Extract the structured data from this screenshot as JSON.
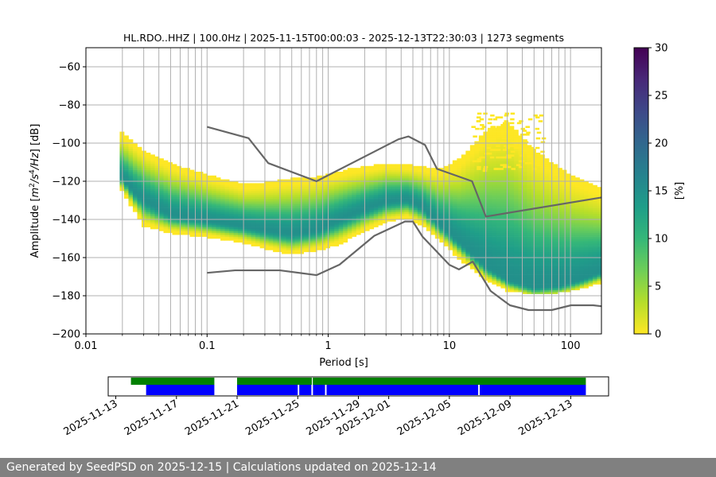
{
  "chart_data": [
    {
      "type": "heatmap",
      "title": "HL.RDO..HHZ | 100.0Hz | 2025-11-15T00:00:03 - 2025-12-13T22:30:03 | 1273 segments",
      "xlabel": "Period [s]",
      "ylabel_pre": "Amplitude [",
      "ylabel_m": "m",
      "ylabel_2": "2",
      "ylabel_s": "/s",
      "ylabel_4": "4",
      "ylabel_hz": "/Hz",
      "ylabel_post": "] [dB]",
      "x_scale": "log",
      "xlim": [
        0.01,
        180
      ],
      "ylim": [
        -200,
        -50
      ],
      "x_ticks": [
        {
          "value": 0.01,
          "label": "0.01"
        },
        {
          "value": 0.1,
          "label": "0.1"
        },
        {
          "value": 1,
          "label": "1"
        },
        {
          "value": 10,
          "label": "10"
        },
        {
          "value": 100,
          "label": "100"
        }
      ],
      "y_ticks": [
        {
          "value": -60,
          "label": "−60"
        },
        {
          "value": -80,
          "label": "−80"
        },
        {
          "value": -100,
          "label": "−100"
        },
        {
          "value": -120,
          "label": "−120"
        },
        {
          "value": -140,
          "label": "−140"
        },
        {
          "value": -160,
          "label": "−160"
        },
        {
          "value": -180,
          "label": "−180"
        },
        {
          "value": -200,
          "label": "−200"
        }
      ],
      "grid": true,
      "colorbar": {
        "label": "[%]",
        "range": [
          0,
          30
        ],
        "ticks": [
          {
            "value": 0,
            "label": "0"
          },
          {
            "value": 5,
            "label": "5"
          },
          {
            "value": 10,
            "label": "10"
          },
          {
            "value": 15,
            "label": "15"
          },
          {
            "value": 20,
            "label": "20"
          },
          {
            "value": 25,
            "label": "25"
          },
          {
            "value": 30,
            "label": "30"
          }
        ],
        "colors": [
          "#fde725",
          "#b5de2b",
          "#6ece58",
          "#35b779",
          "#1f9e89",
          "#26828e",
          "#31688e",
          "#3e4989",
          "#482878",
          "#440154"
        ]
      },
      "density_band": {
        "core": [
          {
            "period": 0.019,
            "db": -117
          },
          {
            "period": 0.025,
            "db": -126
          },
          {
            "period": 0.03,
            "db": -130
          },
          {
            "period": 0.05,
            "db": -138
          },
          {
            "period": 0.1,
            "db": -141
          },
          {
            "period": 0.2,
            "db": -144
          },
          {
            "period": 0.3,
            "db": -146
          },
          {
            "period": 0.5,
            "db": -148
          },
          {
            "period": 0.8,
            "db": -146
          },
          {
            "period": 1.2,
            "db": -141
          },
          {
            "period": 2,
            "db": -135
          },
          {
            "period": 3,
            "db": -131
          },
          {
            "period": 4.5,
            "db": -130
          },
          {
            "period": 6,
            "db": -134
          },
          {
            "period": 8,
            "db": -142
          },
          {
            "period": 12,
            "db": -152
          },
          {
            "period": 20,
            "db": -165
          },
          {
            "period": 30,
            "db": -172
          },
          {
            "period": 50,
            "db": -176
          },
          {
            "period": 80,
            "db": -175
          },
          {
            "period": 120,
            "db": -172
          },
          {
            "period": 180,
            "db": -168
          }
        ],
        "upper": [
          {
            "period": 0.019,
            "db": -95
          },
          {
            "period": 0.03,
            "db": -105
          },
          {
            "period": 0.05,
            "db": -112
          },
          {
            "period": 0.1,
            "db": -118
          },
          {
            "period": 0.2,
            "db": -123
          },
          {
            "period": 0.3,
            "db": -122
          },
          {
            "period": 0.5,
            "db": -120
          },
          {
            "period": 0.8,
            "db": -119
          },
          {
            "period": 1.5,
            "db": -115
          },
          {
            "period": 3,
            "db": -112
          },
          {
            "period": 5,
            "db": -113
          },
          {
            "period": 8,
            "db": -115
          },
          {
            "period": 12,
            "db": -110
          },
          {
            "period": 20,
            "db": -95
          },
          {
            "period": 30,
            "db": -90
          },
          {
            "period": 50,
            "db": -105
          },
          {
            "period": 100,
            "db": -118
          },
          {
            "period": 180,
            "db": -125
          }
        ],
        "lower": [
          {
            "period": 0.019,
            "db": -123
          },
          {
            "period": 0.03,
            "db": -143
          },
          {
            "period": 0.05,
            "db": -147
          },
          {
            "period": 0.1,
            "db": -149
          },
          {
            "period": 0.2,
            "db": -152
          },
          {
            "period": 0.3,
            "db": -155
          },
          {
            "period": 0.5,
            "db": -158
          },
          {
            "period": 0.8,
            "db": -156
          },
          {
            "period": 1.2,
            "db": -153
          },
          {
            "period": 2,
            "db": -146
          },
          {
            "period": 3,
            "db": -141
          },
          {
            "period": 4.5,
            "db": -139
          },
          {
            "period": 6,
            "db": -143
          },
          {
            "period": 8,
            "db": -150
          },
          {
            "period": 12,
            "db": -160
          },
          {
            "period": 20,
            "db": -172
          },
          {
            "period": 30,
            "db": -177
          },
          {
            "period": 50,
            "db": -179
          },
          {
            "period": 80,
            "db": -178
          },
          {
            "period": 120,
            "db": -176
          },
          {
            "period": 180,
            "db": -173
          }
        ],
        "sparse_cloud": {
          "period_range": [
            15,
            60
          ],
          "db_range": [
            -115,
            -85
          ]
        }
      },
      "noise_models": [
        {
          "points": [
            {
              "period": 0.1,
              "db": -91.5
            },
            {
              "period": 0.22,
              "db": -97.4
            },
            {
              "period": 0.32,
              "db": -110.5
            },
            {
              "period": 0.8,
              "db": -120
            },
            {
              "period": 3.8,
              "db": -98
            },
            {
              "period": 4.6,
              "db": -96.5
            },
            {
              "period": 6.3,
              "db": -101
            },
            {
              "period": 7.9,
              "db": -113.5
            },
            {
              "period": 15.4,
              "db": -120
            },
            {
              "period": 20,
              "db": -138.5
            },
            {
              "period": 180,
              "db": -128.5
            }
          ]
        },
        {
          "points": [
            {
              "period": 0.1,
              "db": -168
            },
            {
              "period": 0.17,
              "db": -166.7
            },
            {
              "period": 0.4,
              "db": -166.7
            },
            {
              "period": 0.8,
              "db": -169.2
            },
            {
              "period": 1.24,
              "db": -163.7
            },
            {
              "period": 2.4,
              "db": -148.6
            },
            {
              "period": 4.3,
              "db": -141.1
            },
            {
              "period": 5.0,
              "db": -141.1
            },
            {
              "period": 6.0,
              "db": -149
            },
            {
              "period": 10,
              "db": -163.8
            },
            {
              "period": 12,
              "db": -166.2
            },
            {
              "period": 15.6,
              "db": -162.1
            },
            {
              "period": 21.9,
              "db": -177.5
            },
            {
              "period": 31.6,
              "db": -185
            },
            {
              "period": 45,
              "db": -187.5
            },
            {
              "period": 70,
              "db": -187.5
            },
            {
              "period": 101,
              "db": -185
            },
            {
              "period": 154,
              "db": -185
            },
            {
              "period": 180,
              "db": -185.5
            }
          ]
        }
      ]
    },
    {
      "type": "timeline",
      "x_ticks": [
        {
          "date": "2025-11-13",
          "label": "2025-11-13"
        },
        {
          "date": "2025-11-17",
          "label": "2025-11-17"
        },
        {
          "date": "2025-11-21",
          "label": "2025-11-21"
        },
        {
          "date": "2025-11-25",
          "label": "2025-11-25"
        },
        {
          "date": "2025-11-29",
          "label": "2025-11-29"
        },
        {
          "date": "2025-12-01",
          "label": "2025-12-01"
        },
        {
          "date": "2025-12-05",
          "label": "2025-12-05"
        },
        {
          "date": "2025-12-09",
          "label": "2025-12-09"
        },
        {
          "date": "2025-12-13",
          "label": "2025-12-13"
        }
      ],
      "xlim": [
        "2025-11-12.5",
        "2025-12-15.5"
      ],
      "data_availability": {
        "color": "#008000",
        "spans": [
          [
            "2025-11-14.0",
            "2025-11-19.5"
          ],
          [
            "2025-11-21.0",
            "2025-12-14.0"
          ]
        ]
      },
      "psd_coverage": {
        "color": "#0000ff",
        "spans": [
          [
            "2025-11-15.0",
            "2025-11-19.5"
          ],
          [
            "2025-11-21.0",
            "2025-11-25.0"
          ],
          [
            "2025-11-25.1",
            "2025-11-25.9"
          ],
          [
            "2025-11-26.0",
            "2025-11-26.8"
          ],
          [
            "2025-11-26.9",
            "2025-12-06.9"
          ],
          [
            "2025-12-07.0",
            "2025-12-14.0"
          ]
        ]
      },
      "marker_date": "2025-11-25.96"
    }
  ],
  "footer": {
    "text": "Generated by SeedPSD on 2025-12-15 | Calculations updated on 2025-12-14"
  }
}
